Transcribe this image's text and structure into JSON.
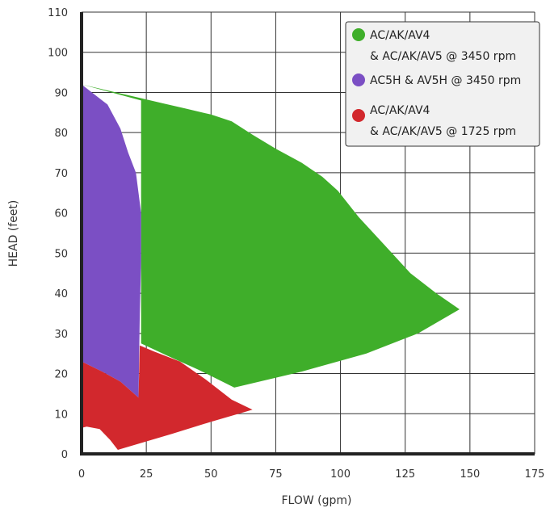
{
  "chart_data": {
    "type": "area",
    "xlabel": "FLOW (gpm)",
    "ylabel": "HEAD (feet)",
    "xlim": [
      0,
      175
    ],
    "ylim": [
      0,
      110
    ],
    "x_ticks": [
      "0",
      "25",
      "50",
      "75",
      "100",
      "125",
      "150",
      "175"
    ],
    "y_ticks": [
      "0",
      "10",
      "20",
      "30",
      "40",
      "50",
      "60",
      "70",
      "80",
      "90",
      "100",
      "110"
    ],
    "grid": true,
    "legend_position": "top-right",
    "series": [
      {
        "name": "AC/AK/AV4\n& AC/AK/AV5 @ 3450 rpm",
        "color": "#3fae2a",
        "points": [
          [
            0,
            92
          ],
          [
            10,
            90.5
          ],
          [
            20,
            89
          ],
          [
            30,
            87.5
          ],
          [
            40,
            86
          ],
          [
            50,
            84.5
          ],
          [
            58,
            82.8
          ],
          [
            66,
            79.5
          ],
          [
            75,
            76
          ],
          [
            85,
            72.5
          ],
          [
            93,
            69
          ],
          [
            99,
            65.5
          ],
          [
            107,
            59
          ],
          [
            117,
            52
          ],
          [
            127,
            45
          ],
          [
            137,
            40
          ],
          [
            146,
            36
          ],
          [
            130,
            30
          ],
          [
            110,
            25
          ],
          [
            85,
            20.5
          ],
          [
            59,
            16.5
          ],
          [
            45,
            21
          ],
          [
            33,
            24.5
          ],
          [
            28,
            26
          ],
          [
            23,
            27.5
          ],
          [
            23,
            88
          ]
        ]
      },
      {
        "name": "AC5H & AV5H @ 3450 rpm",
        "color": "#7b4fc4",
        "points": [
          [
            0,
            92
          ],
          [
            4,
            90
          ],
          [
            10,
            87
          ],
          [
            15,
            81
          ],
          [
            18,
            75
          ],
          [
            21,
            70
          ],
          [
            22,
            65
          ],
          [
            23,
            60
          ],
          [
            23,
            48
          ],
          [
            22.5,
            35
          ],
          [
            22,
            14
          ],
          [
            15,
            18
          ],
          [
            8,
            20.5
          ],
          [
            0,
            23
          ]
        ]
      },
      {
        "name": "AC/AK/AV4\n& AC/AK/AV5 @ 1725 rpm",
        "color": "#d2282d",
        "points": [
          [
            0,
            23
          ],
          [
            8,
            20.5
          ],
          [
            15,
            18
          ],
          [
            22,
            14
          ],
          [
            22.5,
            27
          ],
          [
            28,
            25.5
          ],
          [
            38,
            23
          ],
          [
            48,
            18.5
          ],
          [
            58,
            13.5
          ],
          [
            66,
            11
          ],
          [
            50,
            8
          ],
          [
            35,
            5
          ],
          [
            14,
            1
          ],
          [
            11,
            3.5
          ],
          [
            7,
            6.2
          ],
          [
            2,
            6.8
          ],
          [
            0,
            6.5
          ]
        ]
      }
    ]
  }
}
